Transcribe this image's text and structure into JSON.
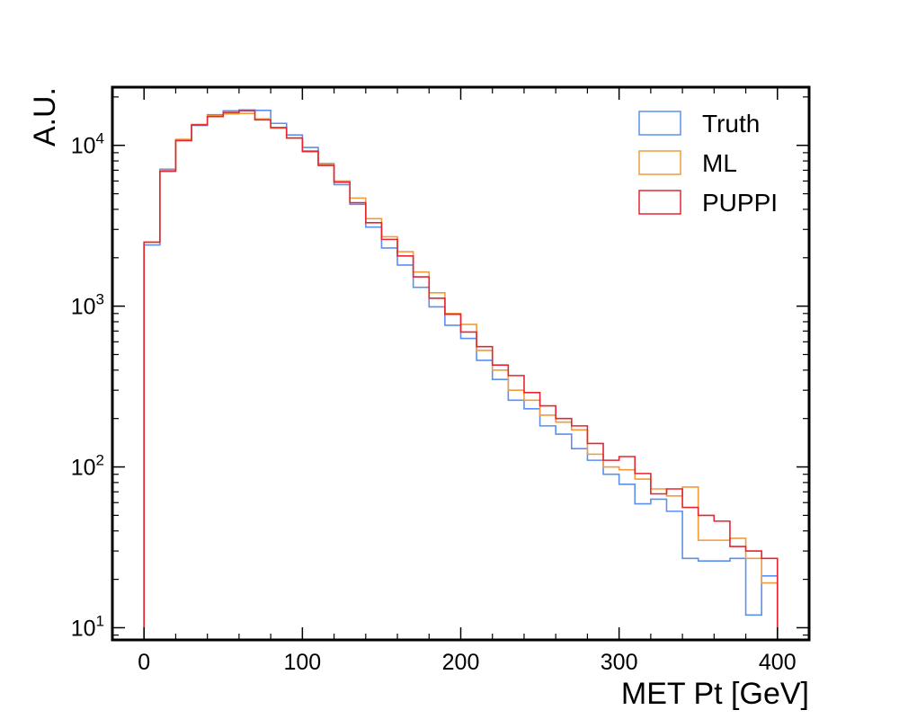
{
  "chart_data": {
    "type": "histogram-step",
    "xlabel": "MET Pt [GeV]",
    "ylabel": "A.U.",
    "xlim": [
      -20,
      420
    ],
    "ylim": [
      8.4,
      23000
    ],
    "yscale": "log",
    "legend_position": "top-right",
    "x_ticks": [
      "0",
      "100",
      "200",
      "300",
      "400"
    ],
    "y_ticks": [
      {
        "base": "10",
        "exp": "1"
      },
      {
        "base": "10",
        "exp": "2"
      },
      {
        "base": "10",
        "exp": "3"
      },
      {
        "base": "10",
        "exp": "4"
      }
    ],
    "bin_edges": [
      0,
      10,
      20,
      30,
      40,
      50,
      60,
      70,
      80,
      90,
      100,
      110,
      120,
      130,
      140,
      150,
      160,
      170,
      180,
      190,
      200,
      210,
      220,
      230,
      240,
      250,
      260,
      270,
      280,
      290,
      300,
      310,
      320,
      330,
      340,
      350,
      360,
      370,
      380,
      390,
      400
    ],
    "series": [
      {
        "name": "Truth",
        "color": "#5b8ff0",
        "values": [
          2400,
          7100,
          10800,
          13300,
          15500,
          16400,
          16600,
          16500,
          13700,
          11600,
          9700,
          7700,
          5700,
          4300,
          3100,
          2300,
          1800,
          1310,
          990,
          760,
          630,
          460,
          350,
          260,
          230,
          180,
          160,
          130,
          110,
          90,
          78,
          59,
          63,
          53,
          27,
          26,
          26,
          27,
          12,
          21
        ]
      },
      {
        "name": "ML",
        "color": "#f29b38",
        "values": [
          2500,
          7000,
          10900,
          13500,
          15300,
          15700,
          15800,
          14600,
          12800,
          11100,
          9100,
          7600,
          6000,
          4700,
          3500,
          2700,
          2180,
          1630,
          1210,
          900,
          770,
          530,
          400,
          300,
          260,
          210,
          190,
          170,
          120,
          100,
          96,
          84,
          73,
          66,
          75,
          35,
          35,
          36,
          27,
          19
        ]
      },
      {
        "name": "PUPPI",
        "color": "#e52630",
        "values": [
          2500,
          6900,
          10700,
          13400,
          15100,
          16000,
          16400,
          14400,
          12900,
          11100,
          9200,
          7500,
          5900,
          4400,
          3300,
          2600,
          2050,
          1520,
          1120,
          890,
          690,
          560,
          430,
          370,
          290,
          240,
          200,
          180,
          140,
          110,
          116,
          91,
          68,
          73,
          56,
          50,
          46,
          32,
          30,
          27
        ]
      }
    ]
  }
}
